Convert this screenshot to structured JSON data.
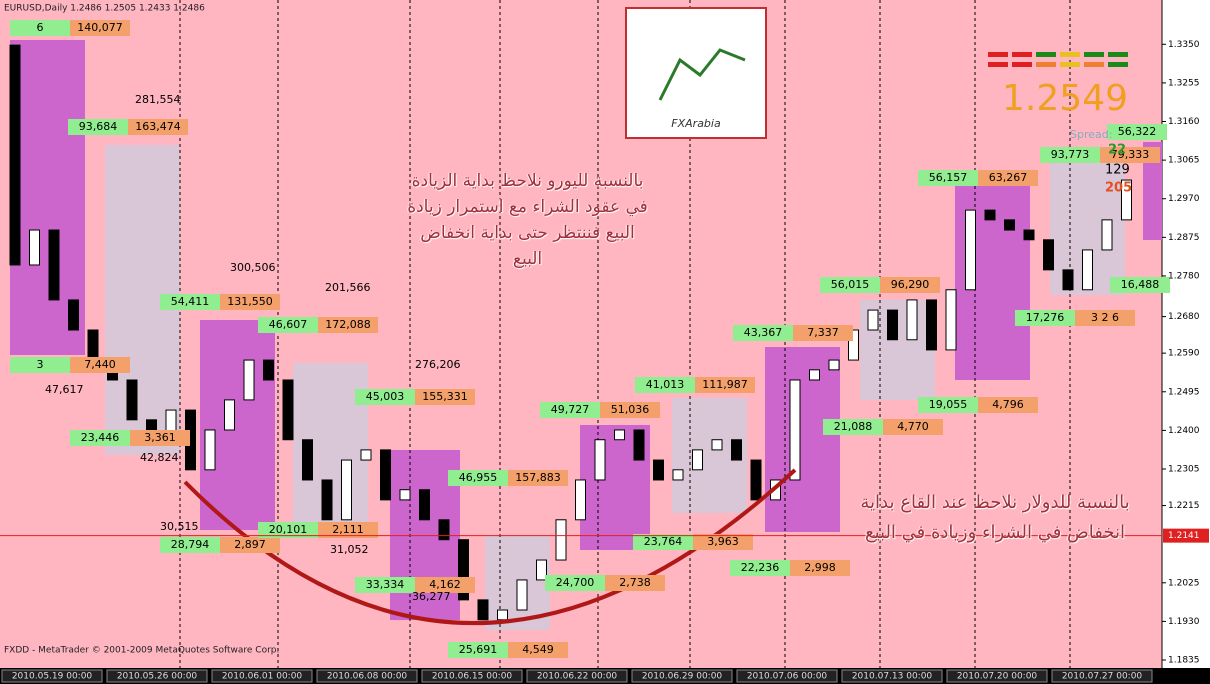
{
  "header": {
    "symbol_line": "EURUSD,Daily 1.2486 1.2505 1.2433 1.2486",
    "footer": "FXDD - MetaTrader © 2001-2009 MetaQuotes Software Corp."
  },
  "price_axis": {
    "ylim": [
      1.1835,
      1.3459
    ],
    "ticks": [
      {
        "value": 1.335,
        "label": "1.3350"
      },
      {
        "value": 1.3255,
        "label": "1.3255"
      },
      {
        "value": 1.316,
        "label": "1.3160"
      },
      {
        "value": 1.3065,
        "label": "1.3065"
      },
      {
        "value": 1.297,
        "label": "1.2970"
      },
      {
        "value": 1.2875,
        "label": "1.2875"
      },
      {
        "value": 1.278,
        "label": "1.2780"
      },
      {
        "value": 1.268,
        "label": "1.2680"
      },
      {
        "value": 1.259,
        "label": "1.2590"
      },
      {
        "value": 1.2495,
        "label": "1.2495"
      },
      {
        "value": 1.24,
        "label": "1.2400"
      },
      {
        "value": 1.2305,
        "label": "1.2305"
      },
      {
        "value": 1.2215,
        "label": "1.2215"
      },
      {
        "value": 1.2025,
        "label": "1.2025"
      },
      {
        "value": 1.193,
        "label": "1.1930"
      },
      {
        "value": 1.1835,
        "label": "1.1835"
      }
    ],
    "current": {
      "value": 1.2141,
      "label": "1.2141"
    }
  },
  "time_axis": {
    "labels": [
      "2010.05.19 00:00",
      "2010.05.26 00:00",
      "2010.06.01 00:00",
      "2010.06.08 00:00",
      "2010.06.15 00:00",
      "2010.06.22 00:00",
      "2010.06.29 00:00",
      "2010.07.06 00:00",
      "2010.07.13 00:00",
      "2010.07.20 00:00",
      "2010.07.27 00:00"
    ]
  },
  "candles": {
    "open": [
      1.3348,
      1.2807,
      1.2893,
      1.2721,
      1.2647,
      1.2573,
      1.2524,
      1.2426,
      1.2377,
      1.245,
      1.2303,
      1.2401,
      1.2475,
      1.2573,
      1.2524,
      1.2377,
      1.2278,
      1.218,
      1.2327,
      1.2352,
      1.2229,
      1.2254,
      1.218,
      1.2131,
      1.1983,
      1.1934,
      1.1958,
      1.2032,
      1.2081,
      1.218,
      1.2278,
      1.2377,
      1.2401,
      1.2327,
      1.2278,
      1.2303,
      1.2352,
      1.2377,
      1.2327,
      1.2229,
      1.2278,
      1.2524,
      1.2549,
      1.2573,
      1.2647,
      1.2696,
      1.2623,
      1.2721,
      1.2598,
      1.2746,
      1.2942,
      1.2918,
      1.2893,
      1.2869,
      1.2795,
      1.2746,
      1.2844,
      1.2918
    ],
    "close": [
      1.2807,
      1.2893,
      1.2721,
      1.2647,
      1.2573,
      1.2524,
      1.2426,
      1.2377,
      1.245,
      1.2303,
      1.2401,
      1.2475,
      1.2573,
      1.2524,
      1.2377,
      1.2278,
      1.218,
      1.2327,
      1.2352,
      1.2229,
      1.2254,
      1.218,
      1.2131,
      1.1983,
      1.1934,
      1.1958,
      1.2032,
      1.2081,
      1.218,
      1.2278,
      1.2377,
      1.2401,
      1.2327,
      1.2278,
      1.2303,
      1.2352,
      1.2377,
      1.2327,
      1.2229,
      1.2278,
      1.2524,
      1.2549,
      1.2573,
      1.2647,
      1.2696,
      1.2623,
      1.2721,
      1.2598,
      1.2746,
      1.2942,
      1.2918,
      1.2893,
      1.2869,
      1.2795,
      1.2746,
      1.2844,
      1.2918,
      1.3016
    ]
  },
  "labels": [
    [
      "6",
      "140,077"
    ],
    [
      "93,684",
      "163,474"
    ],
    [
      "3",
      "7,440"
    ],
    [
      "23,446",
      "3,361"
    ],
    [
      "54,411",
      "131,550"
    ],
    [
      "46,607",
      "172,088"
    ],
    [
      "45,003",
      "155,331"
    ],
    [
      "28,794",
      "2,897"
    ],
    [
      "20,101",
      "2,111"
    ],
    [
      "46,955",
      "157,883"
    ],
    [
      "33,334",
      "4,162"
    ],
    [
      "25,691",
      "4,549"
    ],
    [
      "49,727",
      "51,036"
    ],
    [
      "24,700",
      "2,738"
    ],
    [
      "41,013",
      "111,987"
    ],
    [
      "23,764",
      "3,963"
    ],
    [
      "43,367",
      "7,337"
    ],
    [
      "22,236",
      "2,998"
    ],
    [
      "56,015",
      "96,290"
    ],
    [
      "21,088",
      "4,770"
    ],
    [
      "19,055",
      "4,796"
    ],
    [
      "56,157",
      "63,267"
    ],
    [
      "17,276",
      "3 2 6"
    ],
    [
      "93,773",
      "79,333"
    ],
    [
      "16,488"
    ],
    [
      "56,322"
    ]
  ],
  "plain_labels": [
    "281,554",
    "47,617",
    "42,824",
    "300,506",
    "201,566",
    "276,206",
    "30,515",
    "31,052",
    "36,277"
  ],
  "annotations": {
    "euro": "بالنسبة لليورو نلاحظ بداية الزيادة في عقود الشراء مع استمرار زيادة البيع فننتظر حتى بداية انخفاض البيع",
    "dollar": "بالنسبة للدولار نلاحظ عند القاع بداية انخفاض في الشراء وزيادة في البيع"
  },
  "logo": "FXArabia",
  "widget": {
    "price": "1.2549",
    "spread_label": "Spread:",
    "spread": "22",
    "value_a": "129",
    "value_b": "205"
  }
}
